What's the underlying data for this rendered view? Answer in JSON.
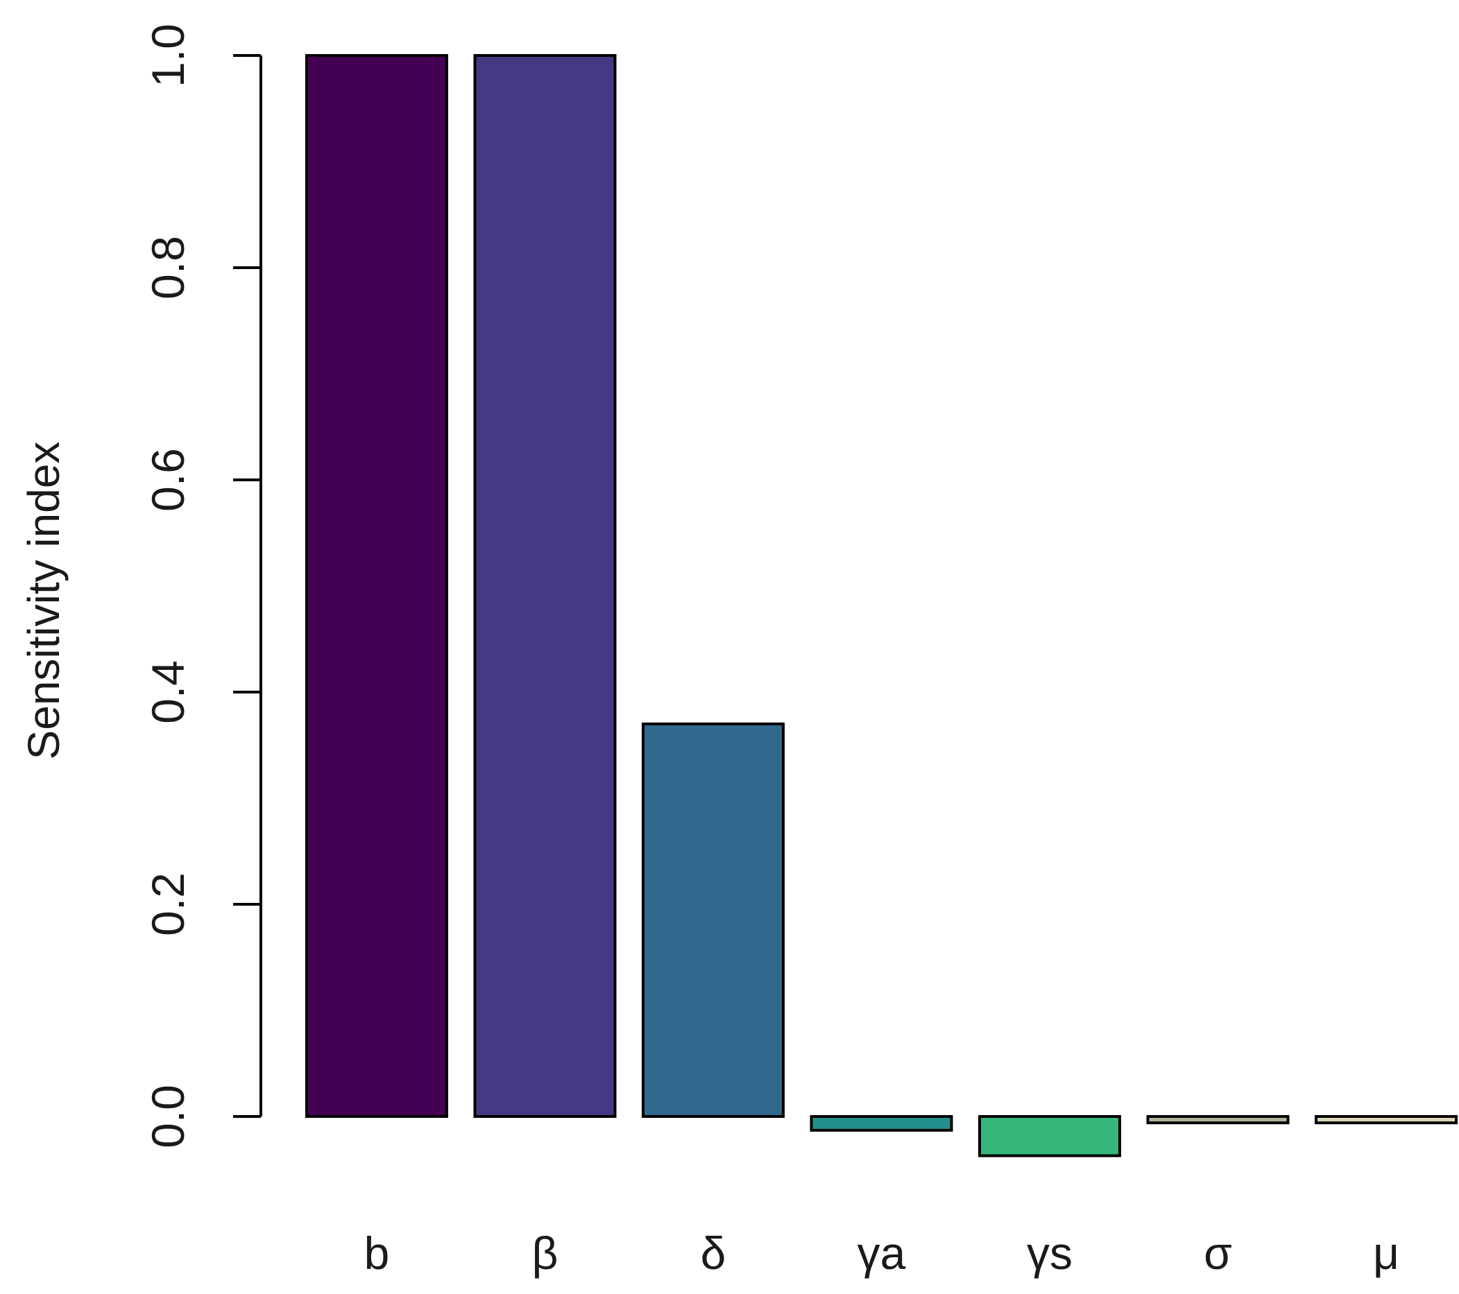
{
  "chart_data": {
    "type": "bar",
    "ylabel": "Sensitivity index",
    "ylim": [
      -0.05,
      1.0
    ],
    "yticks": [
      {
        "value": 0.0,
        "label": "0.0"
      },
      {
        "value": 0.2,
        "label": "0.2"
      },
      {
        "value": 0.4,
        "label": "0.4"
      },
      {
        "value": 0.6,
        "label": "0.6"
      },
      {
        "value": 0.8,
        "label": "0.8"
      },
      {
        "value": 1.0,
        "label": "1.0"
      }
    ],
    "categories": [
      "b",
      "β",
      "δ",
      "γa",
      "γs",
      "σ",
      "μ"
    ],
    "values": [
      1.0,
      1.0,
      0.37,
      -0.013,
      -0.037,
      -0.006,
      -0.006
    ],
    "colors": [
      "#440154",
      "#443a83",
      "#31688e",
      "#21908d",
      "#35b779",
      "#b3b39b",
      "#dcd6b8"
    ],
    "grid": false,
    "legend": "none"
  }
}
